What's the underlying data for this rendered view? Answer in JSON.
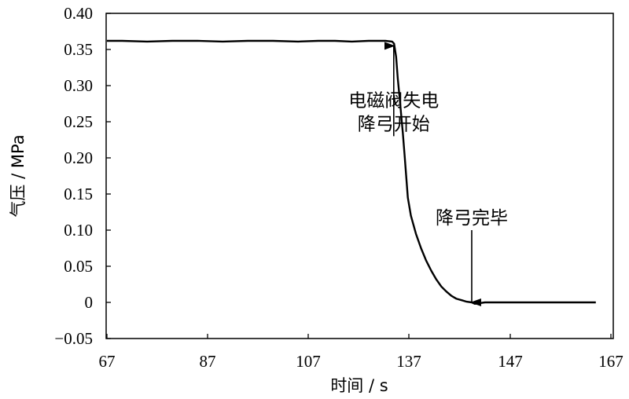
{
  "chart_data": {
    "type": "line",
    "title": "",
    "xlabel": "时间 / s",
    "ylabel": "气压 / MPa",
    "xlim": [
      67,
      167
    ],
    "ylim": [
      -0.05,
      0.4
    ],
    "x_tick_values": [
      67,
      87,
      107,
      137,
      147,
      167
    ],
    "x_tick_labels": [
      "67",
      "87",
      "107",
      "137",
      "147",
      "167"
    ],
    "y_tick_values": [
      -0.05,
      0,
      0.05,
      0.1,
      0.15,
      0.2,
      0.25,
      0.3,
      0.35,
      0.4
    ],
    "y_tick_labels": [
      "−0.05",
      "0",
      "0.05",
      "0.10",
      "0.15",
      "0.20",
      "0.25",
      "0.30",
      "0.35",
      "0.40"
    ],
    "grid": false,
    "series": [
      {
        "color": "#000000",
        "x": [
          67,
          70,
          75,
          80,
          85,
          90,
          95,
          100,
          105,
          110,
          115,
          120,
          125,
          128,
          130,
          132,
          132.6,
          133.2,
          133.7,
          134.2,
          134.7,
          135.2,
          135.7,
          136.2,
          136.7,
          137.2,
          137.7,
          138.2,
          138.7,
          139.2,
          139.7,
          140.2,
          140.7,
          141.2,
          141.7,
          142.2,
          142.7,
          143.2,
          143.5,
          144.5,
          146,
          150,
          155,
          160,
          164
        ],
        "y": [
          0.362,
          0.362,
          0.361,
          0.362,
          0.362,
          0.361,
          0.362,
          0.362,
          0.361,
          0.362,
          0.362,
          0.361,
          0.362,
          0.362,
          0.362,
          0.361,
          0.358,
          0.34,
          0.31,
          0.285,
          0.26,
          0.235,
          0.205,
          0.175,
          0.145,
          0.12,
          0.095,
          0.075,
          0.058,
          0.044,
          0.032,
          0.022,
          0.015,
          0.009,
          0.005,
          0.003,
          0.001,
          0.0,
          -0.002,
          0.0,
          0.0,
          0.0,
          0.0,
          0.0,
          0.0
        ]
      }
    ],
    "annotations": [
      {
        "lines": [
          "电磁阀失电",
          "降弓开始"
        ],
        "arrow_x": 132.5,
        "arrow_from_y": 0.23,
        "arrow_to_y": 0.355
      },
      {
        "lines": [
          "降弓完毕"
        ],
        "arrow_x": 143.2,
        "arrow_from_y": 0.1,
        "arrow_to_y": 0.0
      }
    ]
  }
}
